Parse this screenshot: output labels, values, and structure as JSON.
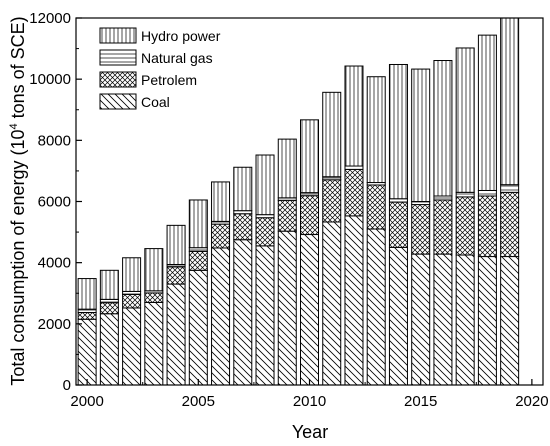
{
  "chart_data": {
    "type": "bar",
    "stacked": true,
    "title": "",
    "xlabel": "Year",
    "ylabel_main": "Total consumption of energy (10",
    "ylabel_sup": "4",
    "ylabel_tail": " tons of SCE)",
    "xlim": [
      1999.5,
      2020.5
    ],
    "ylim": [
      0,
      12000
    ],
    "x_ticks": [
      2000,
      2005,
      2010,
      2015,
      2020
    ],
    "y_ticks": [
      0,
      2000,
      4000,
      6000,
      8000,
      10000,
      12000
    ],
    "grid": false,
    "legend_position": "top-left",
    "categories": [
      2000,
      2001,
      2002,
      2003,
      2004,
      2005,
      2006,
      2007,
      2008,
      2009,
      2010,
      2011,
      2012,
      2013,
      2014,
      2015,
      2016,
      2017,
      2018,
      2019
    ],
    "series": [
      {
        "name": "Coal",
        "pattern": "coal",
        "values": [
          2150,
          2330,
          2520,
          2700,
          3300,
          3750,
          4480,
          4750,
          4550,
          5030,
          4920,
          5330,
          5530,
          5100,
          4500,
          4280,
          4280,
          4250,
          4200,
          4200
        ]
      },
      {
        "name": "Petrolem",
        "pattern": "petrol",
        "values": [
          220,
          360,
          440,
          310,
          560,
          620,
          780,
          850,
          920,
          1010,
          1270,
          1380,
          1520,
          1440,
          1480,
          1620,
          1770,
          1900,
          1980,
          2100
        ]
      },
      {
        "name": "Natural gas",
        "pattern": "gas",
        "values": [
          110,
          110,
          100,
          70,
          80,
          120,
          90,
          100,
          100,
          80,
          100,
          100,
          110,
          80,
          110,
          100,
          130,
          150,
          180,
          250
        ]
      },
      {
        "name": "Hydro power",
        "pattern": "hydro",
        "values": [
          1000,
          950,
          1100,
          1380,
          1280,
          1560,
          1290,
          1420,
          1950,
          1920,
          2380,
          2760,
          3270,
          3460,
          4390,
          4330,
          4430,
          4720,
          5080,
          5450
        ]
      }
    ],
    "legend_order": [
      "Hydro power",
      "Natural gas",
      "Petrolem",
      "Coal"
    ]
  }
}
